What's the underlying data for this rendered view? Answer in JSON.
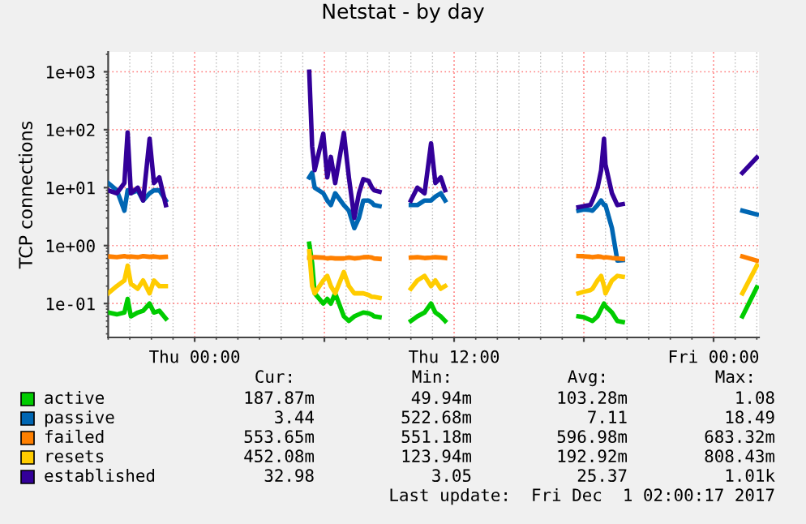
{
  "chart_data": {
    "type": "line",
    "title": "Netstat - by day",
    "ylabel": "TCP connections",
    "x": [
      "2017-11-29T20:00",
      "2017-11-29T20:24",
      "2017-11-29T20:45",
      "2017-11-29T20:54",
      "2017-11-29T21:03",
      "2017-11-29T21:22",
      "2017-11-29T21:37",
      "2017-11-29T21:55",
      "2017-11-29T22:07",
      "2017-11-29T22:22",
      "2017-11-29T22:40",
      "2017-11-29T22:48",
      "2017-11-30T05:18",
      "2017-11-30T05:26",
      "2017-11-30T05:33",
      "2017-11-30T05:57",
      "2017-11-30T06:08",
      "2017-11-30T06:18",
      "2017-11-30T06:30",
      "2017-11-30T06:54",
      "2017-11-30T07:08",
      "2017-11-30T07:23",
      "2017-11-30T07:36",
      "2017-11-30T07:48",
      "2017-11-30T08:03",
      "2017-11-30T08:12",
      "2017-11-30T08:18",
      "2017-11-30T08:33",
      "2017-11-30T09:00",
      "2017-11-30T10:00",
      "2017-11-30T10:18",
      "2017-11-30T10:38",
      "2017-11-30T10:56",
      "2017-11-30T11:08",
      "2017-11-30T11:23",
      "2017-11-30T11:35",
      "2017-11-30T12:00",
      "2017-11-30T17:45",
      "2017-11-30T18:00",
      "2017-11-30T18:18",
      "2017-11-30T18:24",
      "2017-11-30T18:38",
      "2017-11-30T18:48",
      "2017-11-30T18:56",
      "2017-11-30T19:00",
      "2017-11-30T19:18",
      "2017-11-30T19:33",
      "2017-11-30T19:48",
      "2017-11-30T22:00",
      "2017-12-01T01:20",
      "2017-12-01T02:00"
    ],
    "series": [
      {
        "name": "active",
        "color": "#00cc00",
        "values": [
          0.07,
          0.065,
          0.07,
          0.12,
          0.06,
          0.07,
          0.075,
          0.1,
          0.07,
          0.075,
          0.055,
          null,
          1.08,
          0.5,
          0.15,
          0.1,
          0.12,
          0.1,
          0.15,
          0.06,
          0.05,
          0.06,
          0.065,
          0.07,
          0.068,
          0.064,
          0.06,
          0.058,
          null,
          0.05,
          0.06,
          0.07,
          0.1,
          0.07,
          0.06,
          0.05,
          null,
          0.06,
          0.058,
          0.052,
          0.05,
          0.06,
          0.08,
          0.1,
          0.09,
          0.07,
          0.05,
          0.048,
          null,
          0.06,
          0.19
        ]
      },
      {
        "name": "passive",
        "color": "#0066b3",
        "values": [
          12,
          9,
          4,
          9,
          8,
          9,
          6,
          8,
          9,
          9,
          6,
          null,
          15,
          18,
          10,
          8,
          6,
          5,
          8,
          5,
          4,
          2,
          3,
          6,
          6,
          5.5,
          5,
          4.8,
          null,
          5,
          5,
          6,
          6,
          7,
          8,
          6,
          null,
          4,
          4.2,
          4.1,
          4,
          5,
          6,
          5,
          5,
          2,
          0.55,
          0.56,
          null,
          4,
          3.44
        ]
      },
      {
        "name": "failed",
        "color": "#ff8000",
        "values": [
          0.65,
          0.63,
          0.66,
          0.64,
          0.65,
          0.63,
          0.66,
          0.64,
          0.65,
          0.63,
          0.64,
          null,
          0.62,
          0.62,
          0.63,
          0.62,
          0.6,
          0.61,
          0.6,
          0.6,
          0.62,
          0.6,
          0.61,
          0.63,
          0.635,
          0.62,
          0.6,
          0.59,
          null,
          0.62,
          0.63,
          0.61,
          0.62,
          0.63,
          0.62,
          0.61,
          null,
          0.66,
          0.655,
          0.64,
          0.63,
          0.65,
          0.64,
          0.62,
          0.63,
          0.61,
          0.6,
          0.59,
          null,
          0.65,
          0.55
        ]
      },
      {
        "name": "resets",
        "color": "#ffcc00",
        "values": [
          0.15,
          0.2,
          0.25,
          0.45,
          0.22,
          0.18,
          0.25,
          0.15,
          0.25,
          0.2,
          0.2,
          null,
          0.8,
          0.2,
          0.15,
          0.25,
          0.3,
          0.2,
          0.15,
          0.35,
          0.2,
          0.15,
          0.15,
          0.15,
          0.14,
          0.13,
          0.13,
          0.125,
          null,
          0.18,
          0.25,
          0.3,
          0.2,
          0.25,
          0.18,
          0.2,
          null,
          0.15,
          0.16,
          0.17,
          0.18,
          0.25,
          0.3,
          0.2,
          0.15,
          0.25,
          0.3,
          0.29,
          null,
          0.15,
          0.45
        ]
      },
      {
        "name": "established",
        "color": "#330099",
        "values": [
          9,
          8,
          12,
          90,
          8,
          10,
          6,
          70,
          12,
          15,
          5,
          null,
          1000,
          52,
          20,
          85,
          15,
          34,
          12,
          88,
          15,
          3,
          8,
          14,
          13,
          10,
          9,
          8.5,
          null,
          6,
          10,
          8,
          58,
          12,
          15,
          9,
          null,
          4.6,
          4.8,
          5,
          6,
          10,
          20,
          70,
          25,
          8,
          5,
          5.2,
          null,
          18,
          33
        ]
      }
    ],
    "xlim": [
      "2017-11-29T20:00",
      "2017-12-01T02:06"
    ],
    "xticks": [
      {
        "value": "2017-11-30T00:00",
        "label": "Thu 00:00"
      },
      {
        "value": "2017-11-30T06:00",
        "label": null
      },
      {
        "value": "2017-11-30T12:00",
        "label": "Thu 12:00"
      },
      {
        "value": "2017-11-30T18:00",
        "label": null
      },
      {
        "value": "2017-12-01T00:00",
        "label": "Fri 00:00"
      }
    ],
    "ylim": [
      0.026,
      2200
    ],
    "yticks": [
      {
        "value": 0.1,
        "label": "1e-01"
      },
      {
        "value": 1,
        "label": "1e+00"
      },
      {
        "value": 10,
        "label": "1e+01"
      },
      {
        "value": 100,
        "label": "1e+02"
      },
      {
        "value": 1000,
        "label": "1e+03"
      }
    ],
    "log": "y",
    "grid": true,
    "legend": "bottom",
    "line_style": "solid",
    "marker": "none",
    "annotations": [
      "Cur:",
      "Min:",
      "Avg:",
      "Max:",
      "187.87m",
      "49.94m",
      "103.28m",
      "1.08",
      "3.44",
      "522.68m",
      "7.11",
      "18.49",
      "553.65m",
      "551.18m",
      "596.98m",
      "683.32m",
      "452.08m",
      "123.94m",
      "192.92m",
      "808.43m",
      "32.98",
      "3.05",
      "25.37",
      "1.01k",
      "Last update:  Fri Dec  1 02:00:17 2017"
    ]
  }
}
